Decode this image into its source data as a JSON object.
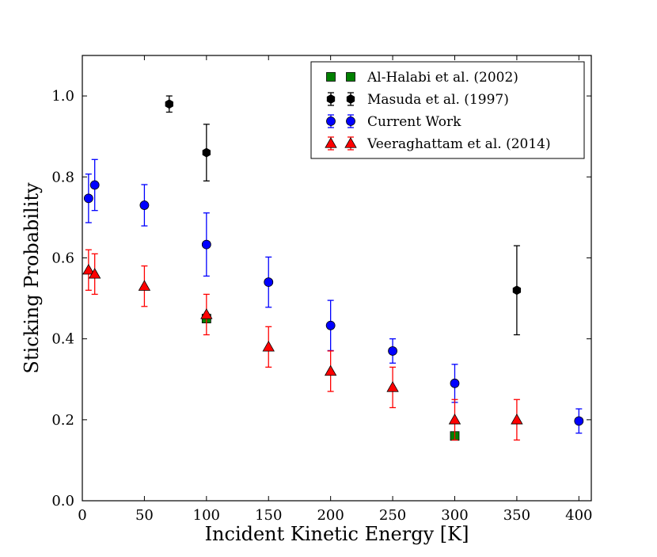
{
  "chart_data": {
    "type": "scatter",
    "xlabel": "Incident Kinetic Energy [K]",
    "ylabel": "Sticking Probability",
    "xlim": [
      0,
      410
    ],
    "ylim": [
      0.0,
      1.1
    ],
    "xticks": [
      "0",
      "50",
      "100",
      "150",
      "200",
      "250",
      "300",
      "350",
      "400"
    ],
    "yticks": [
      "0.0",
      "0.2",
      "0.4",
      "0.6",
      "0.8",
      "1.0"
    ],
    "grid": false,
    "legend_position": "top-right",
    "series": [
      {
        "name": "Al-Halabi et al. (2002)",
        "marker": "square",
        "color": "#008000",
        "points": [
          {
            "x": 100,
            "y": 0.45
          },
          {
            "x": 300,
            "y": 0.16
          }
        ]
      },
      {
        "name": "Masuda et al. (1997)",
        "marker": "hexagon",
        "color": "#000000",
        "points": [
          {
            "x": 70,
            "y": 0.98,
            "err": 0.02
          },
          {
            "x": 100,
            "y": 0.86,
            "err": 0.07
          },
          {
            "x": 350,
            "y": 0.52,
            "err": 0.11
          }
        ]
      },
      {
        "name": "Current Work",
        "marker": "circle",
        "color": "#0000ff",
        "points": [
          {
            "x": 5,
            "y": 0.747,
            "err": 0.06
          },
          {
            "x": 10,
            "y": 0.78,
            "err": 0.063
          },
          {
            "x": 50,
            "y": 0.73,
            "err": 0.051
          },
          {
            "x": 100,
            "y": 0.633,
            "err": 0.078
          },
          {
            "x": 150,
            "y": 0.54,
            "err": 0.062
          },
          {
            "x": 200,
            "y": 0.433,
            "err": 0.062
          },
          {
            "x": 250,
            "y": 0.37,
            "err": 0.03
          },
          {
            "x": 300,
            "y": 0.29,
            "err": 0.047
          },
          {
            "x": 400,
            "y": 0.197,
            "err": 0.03
          }
        ]
      },
      {
        "name": "Veeraghattam et al. (2014)",
        "marker": "triangle",
        "color": "#ff0000",
        "points": [
          {
            "x": 5,
            "y": 0.57,
            "err": 0.05
          },
          {
            "x": 10,
            "y": 0.56,
            "err": 0.05
          },
          {
            "x": 50,
            "y": 0.53,
            "err": 0.05
          },
          {
            "x": 100,
            "y": 0.46,
            "err": 0.05
          },
          {
            "x": 150,
            "y": 0.38,
            "err": 0.05
          },
          {
            "x": 200,
            "y": 0.32,
            "err": 0.05
          },
          {
            "x": 250,
            "y": 0.28,
            "err": 0.05
          },
          {
            "x": 300,
            "y": 0.2,
            "err": 0.05
          },
          {
            "x": 350,
            "y": 0.2,
            "err": 0.05
          }
        ]
      }
    ]
  }
}
